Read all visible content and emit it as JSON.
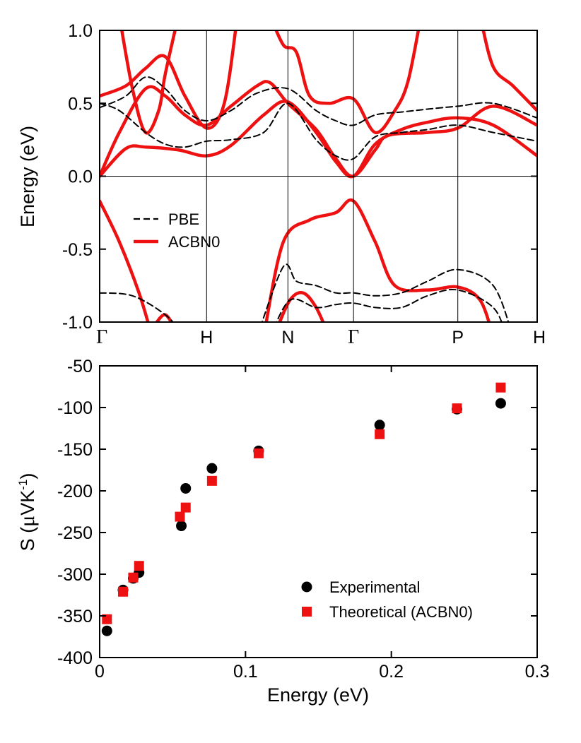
{
  "chart_data": [
    {
      "type": "line",
      "title": "",
      "ylabel": "Energy (eV)",
      "xlabel": "",
      "ylim": [
        -1.0,
        1.0
      ],
      "yticks": [
        -1.0,
        -0.5,
        0.0,
        0.5,
        1.0
      ],
      "ytick_labels": [
        "-1.0",
        "-0.5",
        "0.0",
        "0.5",
        "1.0"
      ],
      "kpath": [
        {
          "label": "Γ",
          "k": 0.0
        },
        {
          "label": "H",
          "k": 0.163
        },
        {
          "label": "N",
          "k": 0.287
        },
        {
          "label": "Γ",
          "k": 0.387
        },
        {
          "label": "P",
          "k": 0.546
        },
        {
          "label": "H",
          "k": 0.667
        }
      ],
      "legend": [
        {
          "label": "PBE",
          "style": "dashed",
          "color": "#000000"
        },
        {
          "label": "ACBN0",
          "style": "solid",
          "color": "#ee1111"
        }
      ],
      "series": [
        {
          "name": "ACBN0",
          "color": "#ee1111",
          "style": "solid",
          "bands": [
            [
              [
                0,
                0
              ],
              [
                0.04,
                0.19
              ],
              [
                0.07,
                0.2
              ],
              [
                0.12,
                0.18
              ],
              [
                0.163,
                0.14
              ],
              [
                0.2,
                0.21
              ],
              [
                0.25,
                0.42
              ],
              [
                0.287,
                0.51
              ],
              [
                0.33,
                0.3
              ],
              [
                0.36,
                0.1
              ],
              [
                0.387,
                0.0
              ],
              [
                0.42,
                0.22
              ],
              [
                0.46,
                0.32
              ],
              [
                0.5,
                0.37
              ],
              [
                0.546,
                0.4
              ],
              [
                0.6,
                0.35
              ],
              [
                0.667,
                0.14
              ]
            ],
            [
              [
                0,
                0
              ],
              [
                0.03,
                0.3
              ],
              [
                0.07,
                0.6
              ],
              [
                0.1,
                0.55
              ],
              [
                0.13,
                0.42
              ],
              [
                0.163,
                0.35
              ],
              [
                0.2,
                0.48
              ],
              [
                0.24,
                0.62
              ],
              [
                0.26,
                0.64
              ],
              [
                0.287,
                0.5
              ],
              [
                0.33,
                0.32
              ],
              [
                0.36,
                0.12
              ],
              [
                0.387,
                0.0
              ],
              [
                0.42,
                0.18
              ],
              [
                0.44,
                0.28
              ],
              [
                0.5,
                0.3
              ],
              [
                0.546,
                0.33
              ],
              [
                0.6,
                0.48
              ],
              [
                0.667,
                0.35
              ]
            ],
            [
              [
                0,
                0.55
              ],
              [
                0.04,
                0.62
              ],
              [
                0.07,
                0.74
              ],
              [
                0.1,
                0.82
              ],
              [
                0.13,
                0.55
              ],
              [
                0.163,
                0.33
              ],
              [
                0.19,
                0.5
              ],
              [
                0.21,
                1.1
              ]
            ],
            [
              [
                0.03,
                1.1
              ],
              [
                0.05,
                0.6
              ],
              [
                0.07,
                0.3
              ],
              [
                0.09,
                0.45
              ],
              [
                0.1,
                0.7
              ],
              [
                0.12,
                1.1
              ]
            ],
            [
              [
                0.26,
                1.1
              ],
              [
                0.28,
                0.9
              ],
              [
                0.3,
                0.85
              ],
              [
                0.32,
                0.55
              ],
              [
                0.35,
                0.5
              ],
              [
                0.387,
                0.53
              ],
              [
                0.42,
                0.3
              ],
              [
                0.45,
                0.45
              ],
              [
                0.47,
                0.65
              ],
              [
                0.49,
                1.1
              ]
            ],
            [
              [
                0.58,
                1.1
              ],
              [
                0.6,
                0.75
              ],
              [
                0.63,
                0.62
              ],
              [
                0.667,
                0.45
              ]
            ],
            [
              [
                0,
                -0.17
              ],
              [
                0.03,
                -0.45
              ],
              [
                0.06,
                -0.8
              ],
              [
                0.08,
                -1.1
              ]
            ],
            [
              [
                0.25,
                -1.1
              ],
              [
                0.28,
                -0.45
              ],
              [
                0.32,
                -0.3
              ],
              [
                0.36,
                -0.25
              ],
              [
                0.387,
                -0.17
              ],
              [
                0.42,
                -0.45
              ],
              [
                0.45,
                -0.75
              ],
              [
                0.5,
                -0.78
              ],
              [
                0.546,
                -0.76
              ],
              [
                0.58,
                -0.85
              ],
              [
                0.6,
                -1.1
              ]
            ],
            [
              [
                0.27,
                -1.05
              ],
              [
                0.29,
                -0.85
              ],
              [
                0.31,
                -0.8
              ],
              [
                0.33,
                -0.9
              ],
              [
                0.35,
                -1.1
              ]
            ],
            [
              [
                0.08,
                -1.05
              ],
              [
                0.1,
                -0.95
              ],
              [
                0.12,
                -1.1
              ]
            ]
          ]
        },
        {
          "name": "PBE",
          "color": "#000000",
          "style": "dashed",
          "bands": [
            [
              [
                0,
                0.5
              ],
              [
                0.03,
                0.45
              ],
              [
                0.07,
                0.3
              ],
              [
                0.1,
                0.22
              ],
              [
                0.13,
                0.2
              ],
              [
                0.163,
                0.24
              ],
              [
                0.2,
                0.25
              ],
              [
                0.25,
                0.3
              ],
              [
                0.287,
                0.5
              ],
              [
                0.33,
                0.25
              ],
              [
                0.36,
                0.14
              ],
              [
                0.387,
                0.12
              ],
              [
                0.42,
                0.27
              ],
              [
                0.46,
                0.3
              ],
              [
                0.5,
                0.32
              ],
              [
                0.546,
                0.35
              ],
              [
                0.6,
                0.3
              ],
              [
                0.667,
                0.24
              ]
            ],
            [
              [
                0,
                0.47
              ],
              [
                0.04,
                0.55
              ],
              [
                0.07,
                0.68
              ],
              [
                0.1,
                0.6
              ],
              [
                0.13,
                0.45
              ],
              [
                0.163,
                0.38
              ],
              [
                0.2,
                0.45
              ],
              [
                0.24,
                0.57
              ],
              [
                0.287,
                0.6
              ],
              [
                0.33,
                0.45
              ],
              [
                0.36,
                0.38
              ],
              [
                0.387,
                0.35
              ],
              [
                0.42,
                0.42
              ],
              [
                0.46,
                0.44
              ],
              [
                0.5,
                0.46
              ],
              [
                0.546,
                0.48
              ],
              [
                0.6,
                0.5
              ],
              [
                0.667,
                0.4
              ]
            ],
            [
              [
                0,
                -0.8
              ],
              [
                0.05,
                -0.82
              ],
              [
                0.1,
                -0.95
              ],
              [
                0.13,
                -1.1
              ]
            ],
            [
              [
                0.24,
                -1.1
              ],
              [
                0.28,
                -0.62
              ],
              [
                0.3,
                -0.72
              ],
              [
                0.33,
                -0.75
              ],
              [
                0.36,
                -0.8
              ],
              [
                0.387,
                -0.8
              ],
              [
                0.42,
                -0.82
              ],
              [
                0.46,
                -0.8
              ],
              [
                0.5,
                -0.72
              ],
              [
                0.546,
                -0.64
              ],
              [
                0.6,
                -0.75
              ],
              [
                0.63,
                -1.1
              ]
            ],
            [
              [
                0.26,
                -1.1
              ],
              [
                0.29,
                -0.85
              ],
              [
                0.33,
                -0.9
              ],
              [
                0.36,
                -0.88
              ],
              [
                0.387,
                -0.87
              ],
              [
                0.42,
                -0.9
              ],
              [
                0.46,
                -0.9
              ],
              [
                0.5,
                -0.82
              ],
              [
                0.546,
                -0.78
              ],
              [
                0.6,
                -0.9
              ],
              [
                0.62,
                -1.1
              ]
            ]
          ]
        }
      ]
    },
    {
      "type": "scatter",
      "title": "",
      "xlabel": "Energy (eV)",
      "ylabel": "S (μVK⁻¹)",
      "xlim": [
        0,
        0.3
      ],
      "ylim": [
        -400,
        -50
      ],
      "xticks": [
        0,
        0.1,
        0.2,
        0.3
      ],
      "xtick_labels": [
        "0",
        "0.1",
        "0.2",
        "0.3"
      ],
      "yticks": [
        -400,
        -350,
        -300,
        -250,
        -200,
        -150,
        -100,
        -50
      ],
      "ytick_labels": [
        "-400",
        "-350",
        "-300",
        "-250",
        "-200",
        "-150",
        "-100",
        "-50"
      ],
      "legend_position": "bottom-right",
      "series": [
        {
          "name": "Experimental",
          "marker": "circle",
          "color": "#000000",
          "x": [
            0.005,
            0.016,
            0.023,
            0.027,
            0.056,
            0.059,
            0.077,
            0.109,
            0.192,
            0.245,
            0.275
          ],
          "y": [
            -368,
            -319,
            -305,
            -298,
            -242,
            -197,
            -173,
            -152,
            -121,
            -102,
            -95
          ]
        },
        {
          "name": "Theoretical (ACBN0)",
          "marker": "square",
          "color": "#ee1111",
          "x": [
            0.005,
            0.016,
            0.023,
            0.027,
            0.055,
            0.059,
            0.077,
            0.109,
            0.192,
            0.245,
            0.275
          ],
          "y": [
            -354,
            -321,
            -304,
            -290,
            -231,
            -220,
            -188,
            -155,
            -132,
            -101,
            -76
          ]
        }
      ]
    }
  ]
}
